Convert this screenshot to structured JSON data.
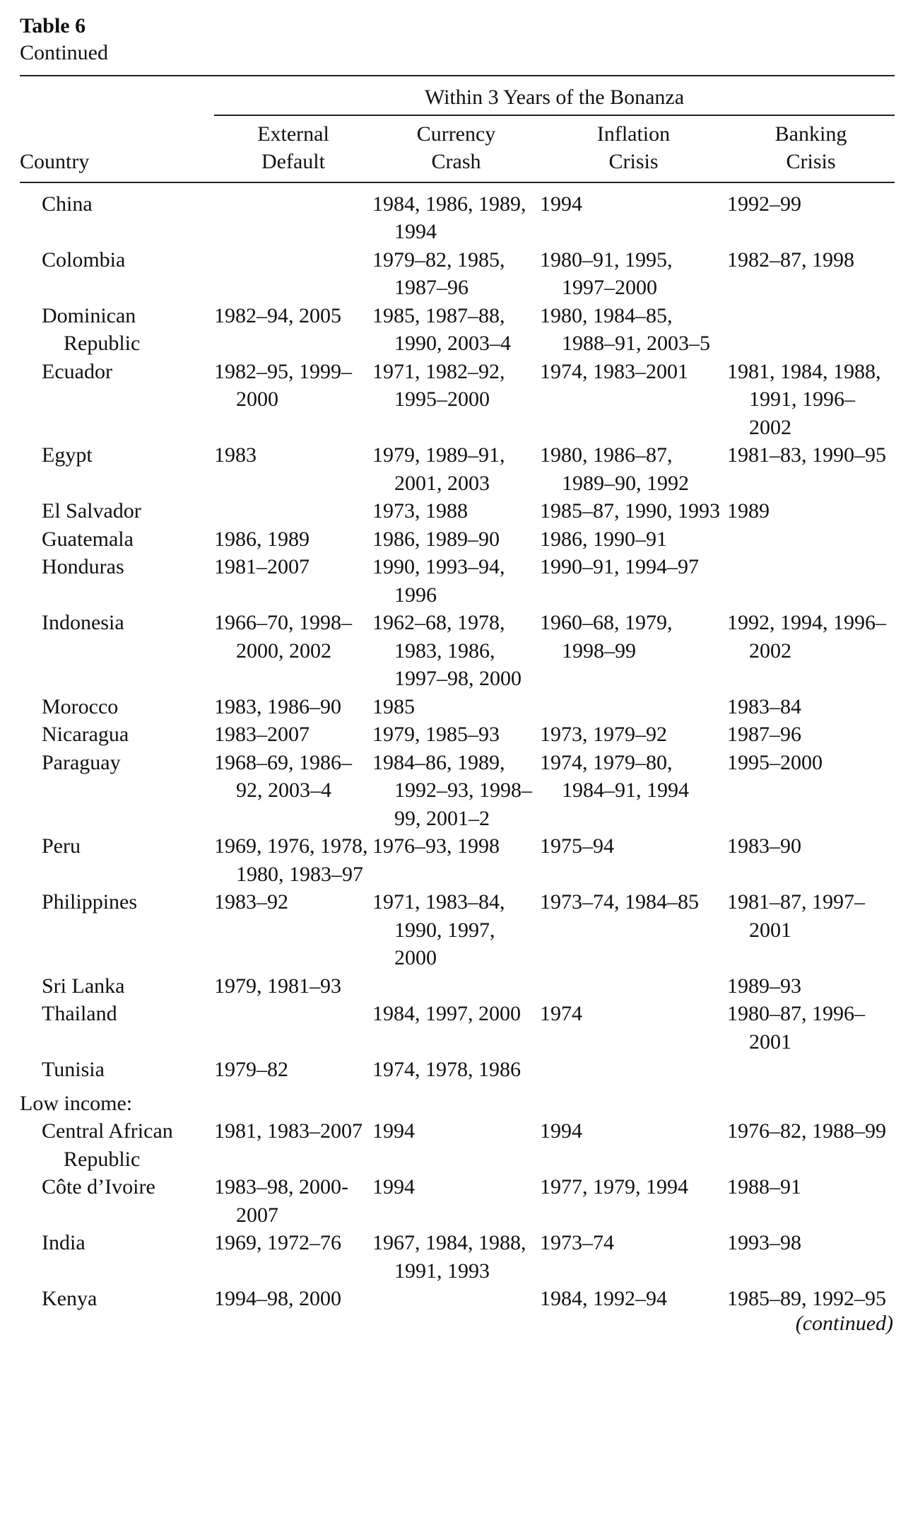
{
  "table_label": "Table 6",
  "table_subtitle": "Continued",
  "header": {
    "spanner": "Within 3 Years of the Bonanza",
    "country": "Country",
    "columns": [
      {
        "line1": "External",
        "line2": "Default"
      },
      {
        "line1": "Currency",
        "line2": "Crash"
      },
      {
        "line1": "Inflation",
        "line2": "Crisis"
      },
      {
        "line1": "Banking",
        "line2": "Crisis"
      }
    ]
  },
  "rows": [
    {
      "country": "China",
      "external_default": "",
      "currency_crash": "1984, 1986, 1989, 1994",
      "inflation_crisis": "1994",
      "banking_crisis": "1992–99"
    },
    {
      "country": "Colombia",
      "external_default": "",
      "currency_crash": "1979–82, 1985, 1987–96",
      "inflation_crisis": "1980–91, 1995, 1997–2000",
      "banking_crisis": "1982–87, 1998"
    },
    {
      "country": "Dominican Republic",
      "external_default": "1982–94, 2005",
      "currency_crash": "1985, 1987–88, 1990, 2003–4",
      "inflation_crisis": "1980, 1984–85, 1988–91, 2003–5",
      "banking_crisis": ""
    },
    {
      "country": "Ecuador",
      "external_default": "1982–95, 1999–2000",
      "currency_crash": "1971, 1982–92, 1995–2000",
      "inflation_crisis": "1974, 1983–2001",
      "banking_crisis": "1981, 1984, 1988, 1991, 1996–2002"
    },
    {
      "country": "Egypt",
      "external_default": "1983",
      "currency_crash": "1979, 1989–91, 2001, 2003",
      "inflation_crisis": "1980, 1986–87, 1989–90, 1992",
      "banking_crisis": "1981–83, 1990–95"
    },
    {
      "country": "El Salvador",
      "external_default": "",
      "currency_crash": "1973, 1988",
      "inflation_crisis": "1985–87, 1990, 1993",
      "banking_crisis": "1989"
    },
    {
      "country": "Guatemala",
      "external_default": "1986, 1989",
      "currency_crash": "1986, 1989–90",
      "inflation_crisis": "1986, 1990–91",
      "banking_crisis": ""
    },
    {
      "country": "Honduras",
      "external_default": "1981–2007",
      "currency_crash": "1990, 1993–94, 1996",
      "inflation_crisis": "1990–91, 1994–97",
      "banking_crisis": ""
    },
    {
      "country": "Indonesia",
      "external_default": "1966–70, 1998–2000, 2002",
      "currency_crash": "1962–68, 1978, 1983, 1986, 1997–98, 2000",
      "inflation_crisis": "1960–68, 1979, 1998–99",
      "banking_crisis": "1992, 1994, 1996–2002"
    },
    {
      "country": "Morocco",
      "external_default": "1983, 1986–90",
      "currency_crash": "1985",
      "inflation_crisis": "",
      "banking_crisis": "1983–84"
    },
    {
      "country": "Nicaragua",
      "external_default": "1983–2007",
      "currency_crash": "1979, 1985–93",
      "inflation_crisis": "1973, 1979–92",
      "banking_crisis": "1987–96"
    },
    {
      "country": "Paraguay",
      "external_default": "1968–69, 1986–92, 2003–4",
      "currency_crash": "1984–86, 1989, 1992–93, 1998–99, 2001–2",
      "inflation_crisis": "1974, 1979–80, 1984–91, 1994",
      "banking_crisis": "1995–2000"
    },
    {
      "country": "Peru",
      "external_default": "1969, 1976, 1978, 1980, 1983–97",
      "currency_crash": "1976–93, 1998",
      "inflation_crisis": "1975–94",
      "banking_crisis": "1983–90"
    },
    {
      "country": "Philippines",
      "external_default": "1983–92",
      "currency_crash": "1971, 1983–84, 1990, 1997, 2000",
      "inflation_crisis": "1973–74, 1984–85",
      "banking_crisis": "1981–87, 1997–2001"
    },
    {
      "country": "Sri Lanka",
      "external_default": "1979, 1981–93",
      "currency_crash": "",
      "inflation_crisis": "",
      "banking_crisis": "1989–93"
    },
    {
      "country": "Thailand",
      "external_default": "",
      "currency_crash": "1984, 1997, 2000",
      "inflation_crisis": "1974",
      "banking_crisis": "1980–87, 1996–2001"
    },
    {
      "country": "Tunisia",
      "external_default": "1979–82",
      "currency_crash": "1974, 1978, 1986",
      "inflation_crisis": "",
      "banking_crisis": ""
    }
  ],
  "group_low_income": "Low income:",
  "rows_low_income": [
    {
      "country": "Central African Republic",
      "external_default": "1981, 1983–2007",
      "currency_crash": "1994",
      "inflation_crisis": "1994",
      "banking_crisis": "1976–82, 1988–99"
    },
    {
      "country": "Côte d’Ivoire",
      "external_default": "1983–98, 2000-2007",
      "currency_crash": "1994",
      "inflation_crisis": "1977, 1979, 1994",
      "banking_crisis": "1988–91"
    },
    {
      "country": "India",
      "external_default": "1969, 1972–76",
      "currency_crash": "1967, 1984, 1988, 1991, 1993",
      "inflation_crisis": "1973–74",
      "banking_crisis": "1993–98"
    },
    {
      "country": "Kenya",
      "external_default": "1994–98, 2000",
      "currency_crash": "",
      "inflation_crisis": "1984, 1992–94",
      "banking_crisis": "1985–89, 1992–95"
    }
  ],
  "continued_note": "(continued)"
}
